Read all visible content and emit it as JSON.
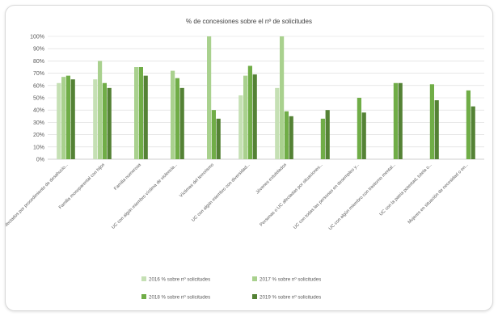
{
  "chart_data": {
    "type": "bar",
    "title": "% de concesiones sobre el nº de solicitudes",
    "ylim": [
      0,
      100
    ],
    "ytick_labels": [
      "0%",
      "10%",
      "20%",
      "30%",
      "40%",
      "50%",
      "60%",
      "70%",
      "80%",
      "90%",
      "100%"
    ],
    "grid": true,
    "legend_position": "bottom",
    "categories": [
      "Afectados por procedimiento de desahucio...",
      "Familia monoparental con hijos",
      "Familia numerosa",
      "UC con algún miembro víctima de violencia...",
      "Víctimas del terrorismo",
      "UC con algún miembro con diversidad...",
      "Jóvenes extutelados",
      "Personas o UC afectadas por situaciones...",
      "UC con todas las personas en desempleo y...",
      "UC con algún miembro con trastorno mental...",
      "UC con la patria potestad, tutela o...",
      "Mujeres en situación de necesidad o en..."
    ],
    "series": [
      {
        "name": "2016 % sobre nº solicitudes",
        "color": "#c5e0b4",
        "values": [
          62,
          65,
          0,
          0,
          0,
          52,
          58,
          0,
          0,
          0,
          0,
          0
        ]
      },
      {
        "name": "2017 % sobre nº solicitudes",
        "color": "#a9d18e",
        "values": [
          67,
          80,
          75,
          72,
          100,
          68,
          100,
          0,
          0,
          0,
          0,
          0
        ]
      },
      {
        "name": "2018 % sobre nº solicitudes",
        "color": "#70ad47",
        "values": [
          68,
          62,
          75,
          66,
          40,
          76,
          39,
          33,
          50,
          62,
          61,
          56
        ]
      },
      {
        "name": "2019 % sobre nº solicitudes",
        "color": "#548235",
        "values": [
          65,
          58,
          68,
          58,
          33,
          69,
          35,
          40,
          38,
          62,
          48,
          43
        ]
      }
    ]
  }
}
